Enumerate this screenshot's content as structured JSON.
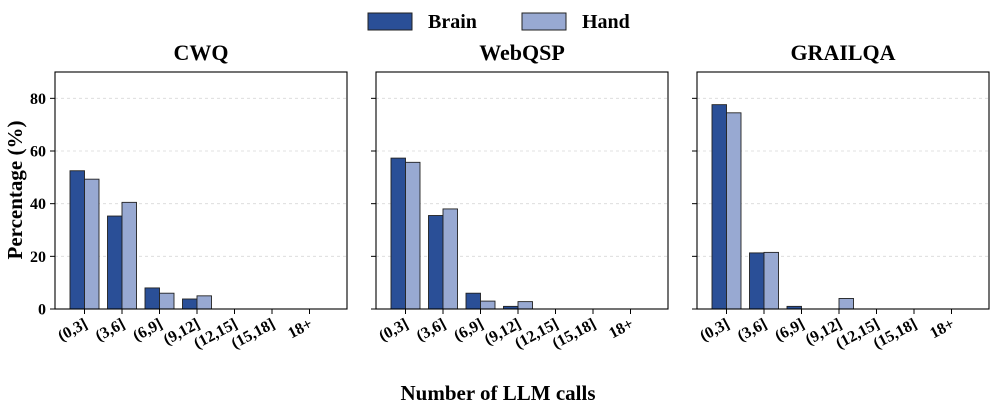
{
  "legend": {
    "items": [
      {
        "name": "Brain",
        "color": "#2a4f97"
      },
      {
        "name": "Hand",
        "color": "#98a9d2"
      }
    ]
  },
  "xlabel": "Number of LLM calls",
  "ylabel": "Percentage (%)",
  "chart_data": [
    {
      "type": "bar",
      "title": "CWQ",
      "categories": [
        "(0,3]",
        "(3,6]",
        "(6,9]",
        "(9,12]",
        "(12,15]",
        "(15,18]",
        "18+"
      ],
      "series": [
        {
          "name": "Brain",
          "values": [
            52.5,
            35.3,
            8.0,
            3.8,
            0,
            0,
            0
          ]
        },
        {
          "name": "Hand",
          "values": [
            49.3,
            40.5,
            6.0,
            5.0,
            0,
            0,
            0
          ]
        }
      ],
      "ylim": [
        0,
        90
      ],
      "yticks": [
        0,
        20,
        40,
        60,
        80
      ],
      "grid": true
    },
    {
      "type": "bar",
      "title": "WebQSP",
      "categories": [
        "(0,3]",
        "(3,6]",
        "(6,9]",
        "(9,12]",
        "(12,15]",
        "(15,18]",
        "18+"
      ],
      "series": [
        {
          "name": "Brain",
          "values": [
            57.3,
            35.5,
            6.0,
            1.0,
            0,
            0,
            0
          ]
        },
        {
          "name": "Hand",
          "values": [
            55.7,
            38.0,
            3.0,
            2.8,
            0,
            0,
            0
          ]
        }
      ],
      "ylim": [
        0,
        90
      ],
      "yticks": [
        0,
        20,
        40,
        60,
        80
      ],
      "grid": true
    },
    {
      "type": "bar",
      "title": "GRAILQA",
      "categories": [
        "(0,3]",
        "(3,6]",
        "(6,9]",
        "(9,12]",
        "(12,15]",
        "(15,18]",
        "18+"
      ],
      "series": [
        {
          "name": "Brain",
          "values": [
            77.6,
            21.3,
            1.0,
            0,
            0,
            0,
            0
          ]
        },
        {
          "name": "Hand",
          "values": [
            74.5,
            21.5,
            0,
            4.0,
            0,
            0,
            0
          ]
        }
      ],
      "ylim": [
        0,
        90
      ],
      "yticks": [
        0,
        20,
        40,
        60,
        80
      ],
      "grid": true
    }
  ]
}
